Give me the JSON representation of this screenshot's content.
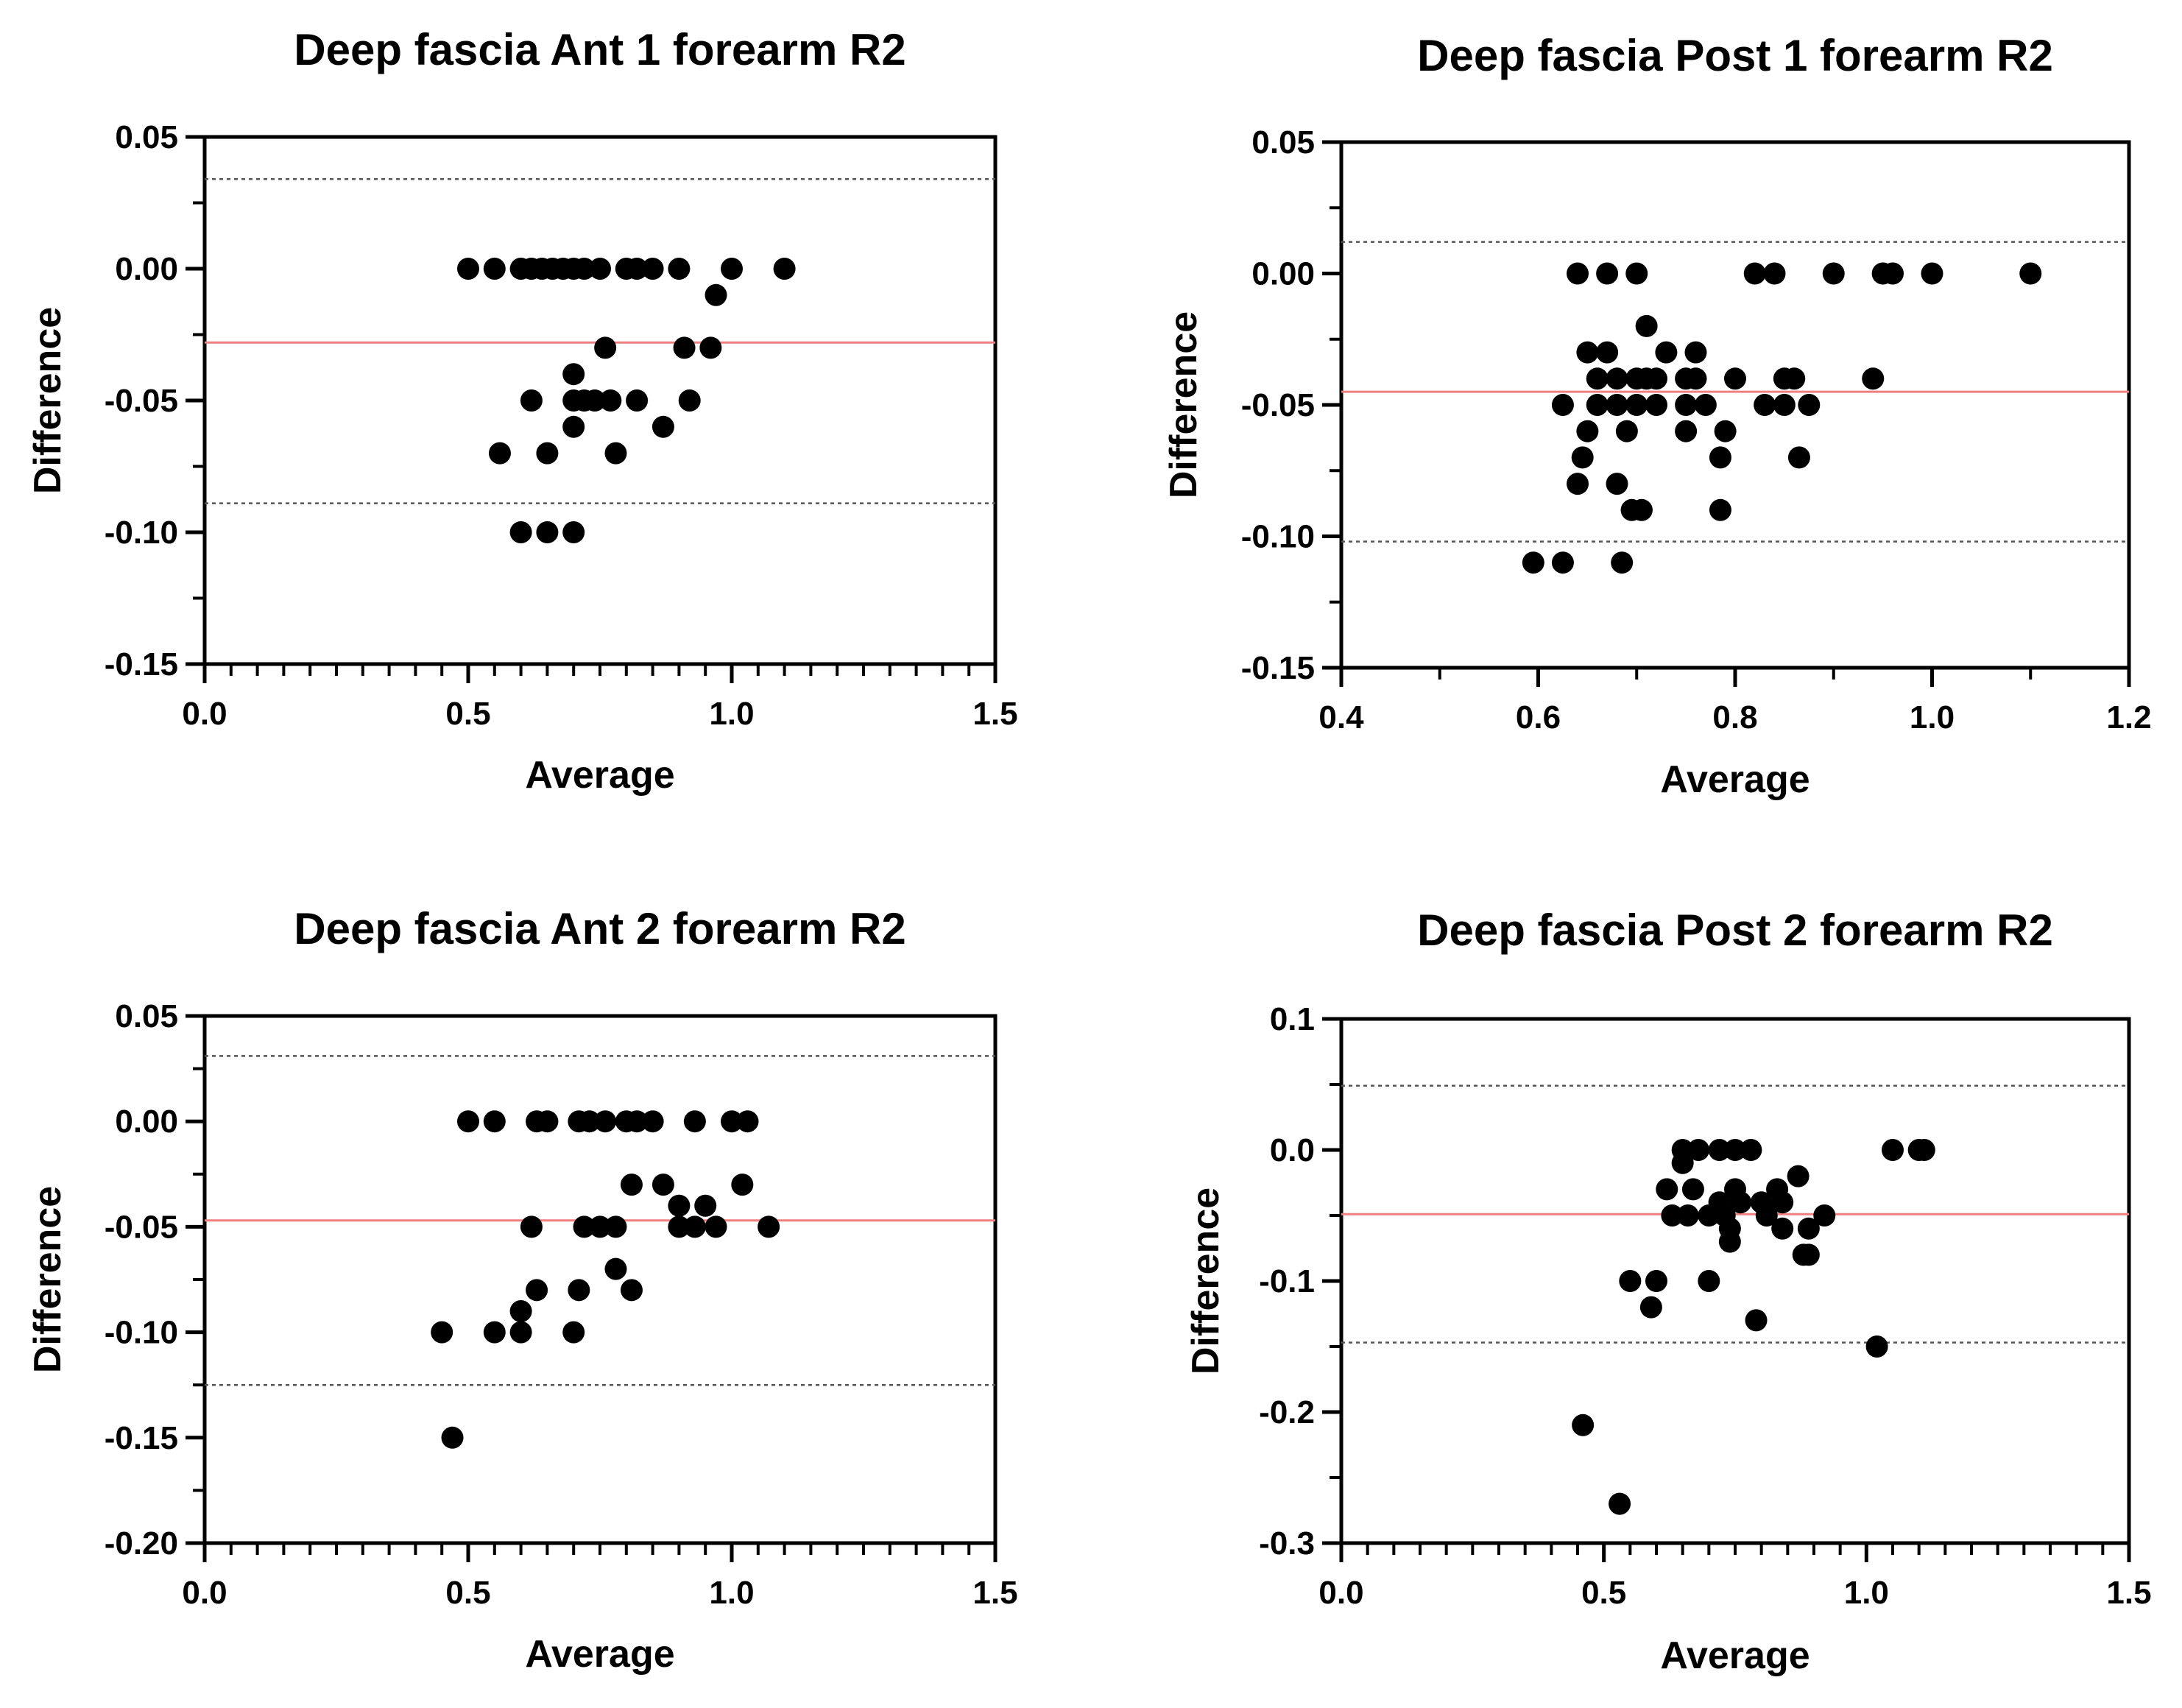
{
  "chart_data": [
    {
      "type": "scatter",
      "title": "Deep fascia Ant 1 forearm R2",
      "xlabel": "Average",
      "ylabel": "Difference",
      "xlim": [
        0.0,
        1.5
      ],
      "ylim": [
        -0.15,
        0.05
      ],
      "xticks": [
        0.0,
        0.5,
        1.0,
        1.5
      ],
      "xtick_labels": [
        "0.0",
        "0.5",
        "1.0",
        "1.5"
      ],
      "yticks": [
        0.05,
        0.0,
        -0.05,
        -0.1,
        -0.15
      ],
      "ytick_labels": [
        "0.05",
        "0.00",
        "-0.05",
        "-0.10",
        "-0.15"
      ],
      "x_minor_step": 0.05,
      "mean_line": -0.028,
      "loa_upper": 0.034,
      "loa_lower": -0.089,
      "points": [
        [
          0.5,
          0
        ],
        [
          0.55,
          0
        ],
        [
          0.6,
          0
        ],
        [
          0.62,
          0
        ],
        [
          0.64,
          0
        ],
        [
          0.66,
          0
        ],
        [
          0.68,
          0
        ],
        [
          0.7,
          0
        ],
        [
          0.72,
          0
        ],
        [
          0.75,
          0
        ],
        [
          0.8,
          0
        ],
        [
          0.82,
          0
        ],
        [
          0.85,
          0
        ],
        [
          0.9,
          0
        ],
        [
          1.0,
          0
        ],
        [
          1.1,
          0
        ],
        [
          0.97,
          -0.01
        ],
        [
          0.76,
          -0.03
        ],
        [
          0.91,
          -0.03
        ],
        [
          0.96,
          -0.03
        ],
        [
          0.7,
          -0.04
        ],
        [
          0.62,
          -0.05
        ],
        [
          0.7,
          -0.05
        ],
        [
          0.72,
          -0.05
        ],
        [
          0.74,
          -0.05
        ],
        [
          0.77,
          -0.05
        ],
        [
          0.82,
          -0.05
        ],
        [
          0.92,
          -0.05
        ],
        [
          0.7,
          -0.06
        ],
        [
          0.87,
          -0.06
        ],
        [
          0.56,
          -0.07
        ],
        [
          0.65,
          -0.07
        ],
        [
          0.78,
          -0.07
        ],
        [
          0.6,
          -0.1
        ],
        [
          0.65,
          -0.1
        ],
        [
          0.7,
          -0.1
        ]
      ]
    },
    {
      "type": "scatter",
      "title": "Deep fascia Post 1 forearm R2",
      "xlabel": "Average",
      "ylabel": "Difference",
      "xlim": [
        0.4,
        1.2
      ],
      "ylim": [
        -0.15,
        0.05
      ],
      "xticks": [
        0.4,
        0.6,
        0.8,
        1.0,
        1.2
      ],
      "xtick_labels": [
        "0.4",
        "0.6",
        "0.8",
        "1.0",
        "1.2"
      ],
      "yticks": [
        0.05,
        0.0,
        -0.05,
        -0.1,
        -0.15
      ],
      "ytick_labels": [
        "0.05",
        "0.00",
        "-0.05",
        "-0.10",
        "-0.15"
      ],
      "x_minor_step": 0,
      "mean_line": -0.045,
      "loa_upper": 0.012,
      "loa_lower": -0.102,
      "points": [
        [
          0.64,
          0
        ],
        [
          0.67,
          0
        ],
        [
          0.7,
          0
        ],
        [
          0.82,
          0
        ],
        [
          0.84,
          0
        ],
        [
          0.9,
          0
        ],
        [
          0.95,
          0
        ],
        [
          0.96,
          0
        ],
        [
          1.0,
          0
        ],
        [
          1.1,
          0
        ],
        [
          0.71,
          -0.02
        ],
        [
          0.65,
          -0.03
        ],
        [
          0.67,
          -0.03
        ],
        [
          0.73,
          -0.03
        ],
        [
          0.76,
          -0.03
        ],
        [
          0.66,
          -0.04
        ],
        [
          0.68,
          -0.04
        ],
        [
          0.7,
          -0.04
        ],
        [
          0.71,
          -0.04
        ],
        [
          0.72,
          -0.04
        ],
        [
          0.75,
          -0.04
        ],
        [
          0.76,
          -0.04
        ],
        [
          0.8,
          -0.04
        ],
        [
          0.85,
          -0.04
        ],
        [
          0.86,
          -0.04
        ],
        [
          0.94,
          -0.04
        ],
        [
          0.625,
          -0.05
        ],
        [
          0.66,
          -0.05
        ],
        [
          0.68,
          -0.05
        ],
        [
          0.7,
          -0.05
        ],
        [
          0.72,
          -0.05
        ],
        [
          0.75,
          -0.05
        ],
        [
          0.77,
          -0.05
        ],
        [
          0.83,
          -0.05
        ],
        [
          0.85,
          -0.05
        ],
        [
          0.875,
          -0.05
        ],
        [
          0.65,
          -0.06
        ],
        [
          0.69,
          -0.06
        ],
        [
          0.75,
          -0.06
        ],
        [
          0.79,
          -0.06
        ],
        [
          0.645,
          -0.07
        ],
        [
          0.785,
          -0.07
        ],
        [
          0.865,
          -0.07
        ],
        [
          0.64,
          -0.08
        ],
        [
          0.68,
          -0.08
        ],
        [
          0.695,
          -0.09
        ],
        [
          0.705,
          -0.09
        ],
        [
          0.785,
          -0.09
        ],
        [
          0.595,
          -0.11
        ],
        [
          0.625,
          -0.11
        ],
        [
          0.685,
          -0.11
        ]
      ]
    },
    {
      "type": "scatter",
      "title": "Deep fascia Ant 2 forearm R2",
      "xlabel": "Average",
      "ylabel": "Difference",
      "xlim": [
        0.0,
        1.5
      ],
      "ylim": [
        -0.2,
        0.05
      ],
      "xticks": [
        0.0,
        0.5,
        1.0,
        1.5
      ],
      "xtick_labels": [
        "0.0",
        "0.5",
        "1.0",
        "1.5"
      ],
      "yticks": [
        0.05,
        0.0,
        -0.05,
        -0.1,
        -0.15,
        -0.2
      ],
      "ytick_labels": [
        "0.05",
        "0.00",
        "-0.05",
        "-0.10",
        "-0.15",
        "-0.20"
      ],
      "x_minor_step": 0.05,
      "mean_line": -0.047,
      "loa_upper": 0.031,
      "loa_lower": -0.125,
      "points": [
        [
          0.5,
          0
        ],
        [
          0.55,
          0
        ],
        [
          0.63,
          0
        ],
        [
          0.65,
          0
        ],
        [
          0.71,
          0
        ],
        [
          0.73,
          0
        ],
        [
          0.76,
          0
        ],
        [
          0.8,
          0
        ],
        [
          0.82,
          0
        ],
        [
          0.85,
          0
        ],
        [
          0.93,
          0
        ],
        [
          1.0,
          0
        ],
        [
          1.03,
          0
        ],
        [
          0.81,
          -0.03
        ],
        [
          0.87,
          -0.03
        ],
        [
          1.02,
          -0.03
        ],
        [
          0.9,
          -0.04
        ],
        [
          0.95,
          -0.04
        ],
        [
          0.62,
          -0.05
        ],
        [
          0.72,
          -0.05
        ],
        [
          0.75,
          -0.05
        ],
        [
          0.78,
          -0.05
        ],
        [
          0.9,
          -0.05
        ],
        [
          0.93,
          -0.05
        ],
        [
          0.97,
          -0.05
        ],
        [
          1.07,
          -0.05
        ],
        [
          0.78,
          -0.07
        ],
        [
          0.63,
          -0.08
        ],
        [
          0.71,
          -0.08
        ],
        [
          0.81,
          -0.08
        ],
        [
          0.6,
          -0.09
        ],
        [
          0.45,
          -0.1
        ],
        [
          0.55,
          -0.1
        ],
        [
          0.6,
          -0.1
        ],
        [
          0.7,
          -0.1
        ],
        [
          0.47,
          -0.15
        ]
      ]
    },
    {
      "type": "scatter",
      "title": "Deep fascia Post 2 forearm R2",
      "xlabel": "Average",
      "ylabel": "Difference",
      "xlim": [
        0.0,
        1.5
      ],
      "ylim": [
        -0.3,
        0.1
      ],
      "xticks": [
        0.0,
        0.5,
        1.0,
        1.5
      ],
      "xtick_labels": [
        "0.0",
        "0.5",
        "1.0",
        "1.5"
      ],
      "yticks": [
        0.1,
        0.0,
        -0.1,
        -0.2,
        -0.3
      ],
      "ytick_labels": [
        "0.1",
        "0.0",
        "-0.1",
        "-0.2",
        "-0.3"
      ],
      "x_minor_step": 0.05,
      "mean_line": -0.049,
      "loa_upper": 0.049,
      "loa_lower": -0.147,
      "points": [
        [
          0.65,
          0
        ],
        [
          0.68,
          0
        ],
        [
          0.72,
          0
        ],
        [
          0.75,
          0
        ],
        [
          0.78,
          0
        ],
        [
          1.05,
          0
        ],
        [
          1.1,
          0
        ],
        [
          1.11,
          0
        ],
        [
          0.65,
          -0.01
        ],
        [
          0.62,
          -0.03
        ],
        [
          0.67,
          -0.03
        ],
        [
          0.75,
          -0.03
        ],
        [
          0.83,
          -0.03
        ],
        [
          0.72,
          -0.04
        ],
        [
          0.76,
          -0.04
        ],
        [
          0.8,
          -0.04
        ],
        [
          0.84,
          -0.04
        ],
        [
          0.63,
          -0.05
        ],
        [
          0.66,
          -0.05
        ],
        [
          0.7,
          -0.05
        ],
        [
          0.73,
          -0.05
        ],
        [
          0.81,
          -0.05
        ],
        [
          0.92,
          -0.05
        ],
        [
          0.74,
          -0.06
        ],
        [
          0.84,
          -0.06
        ],
        [
          0.89,
          -0.06
        ],
        [
          0.74,
          -0.07
        ],
        [
          0.88,
          -0.08
        ],
        [
          0.89,
          -0.08
        ],
        [
          0.87,
          -0.02
        ],
        [
          0.55,
          -0.1
        ],
        [
          0.6,
          -0.1
        ],
        [
          0.7,
          -0.1
        ],
        [
          0.59,
          -0.12
        ],
        [
          0.79,
          -0.13
        ],
        [
          1.02,
          -0.15
        ],
        [
          0.46,
          -0.21
        ],
        [
          0.53,
          -0.27
        ]
      ]
    }
  ]
}
